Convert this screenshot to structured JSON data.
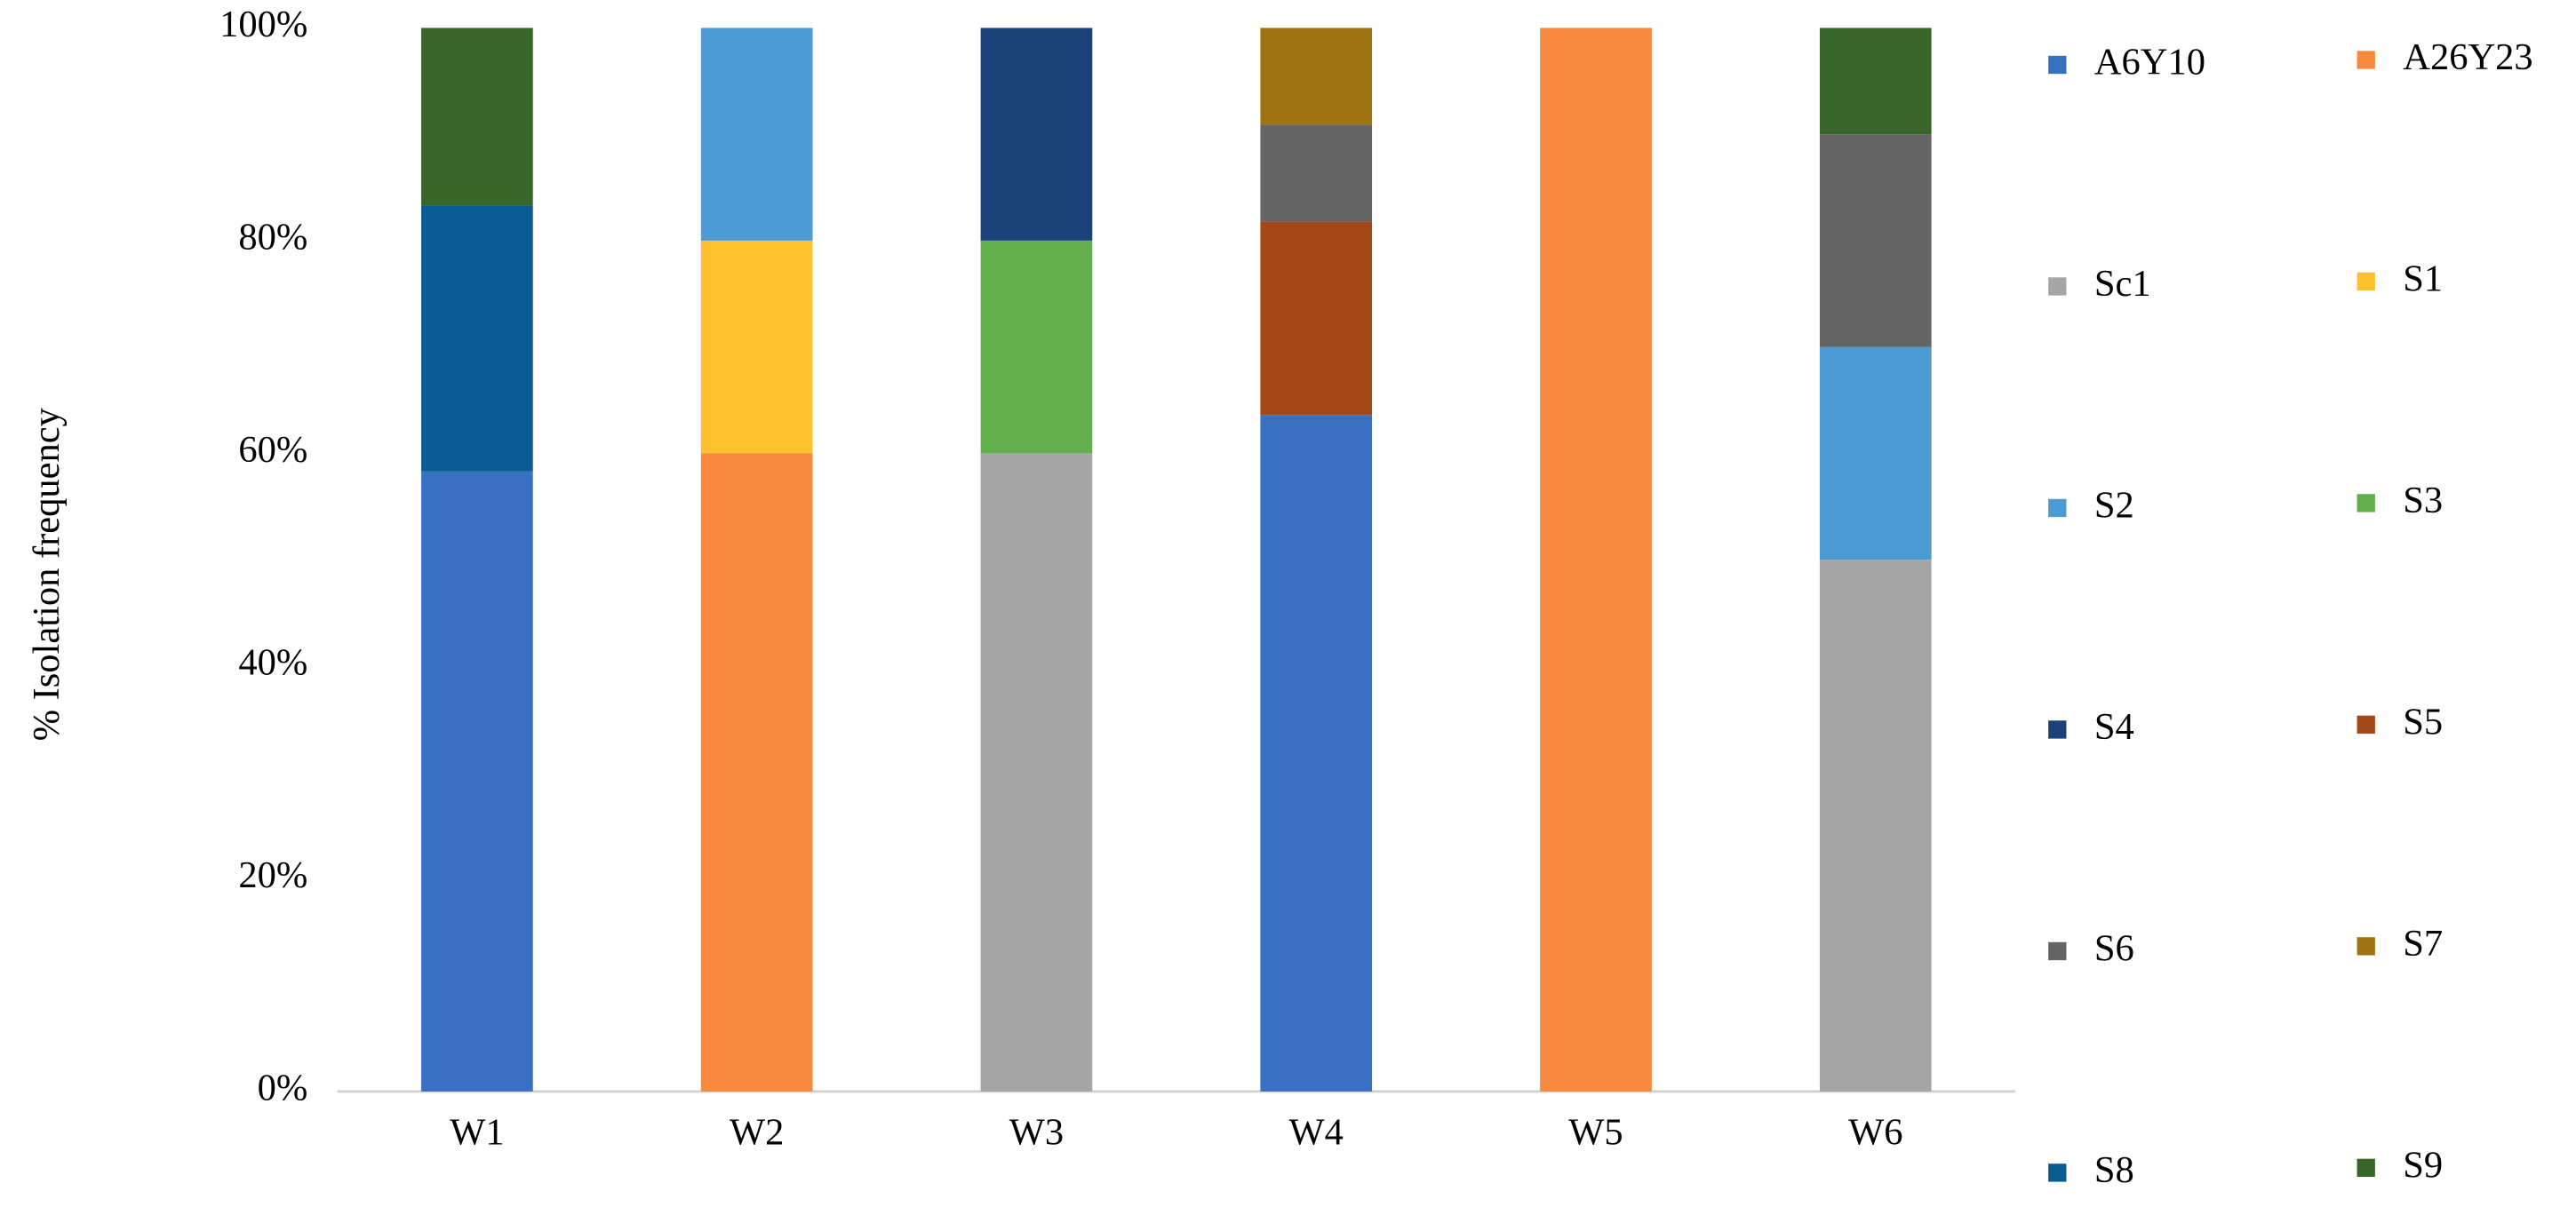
{
  "chart_data": {
    "type": "stacked-bar",
    "y_label": "% Isolation frequency",
    "categories": [
      "W1",
      "W2",
      "W3",
      "W4",
      "W5",
      "W6"
    ],
    "ylim": [
      0,
      100
    ],
    "yticks": [
      {
        "value": 0,
        "label": "0%"
      },
      {
        "value": 20,
        "label": "20%"
      },
      {
        "value": 40,
        "label": "40%"
      },
      {
        "value": 60,
        "label": "60%"
      },
      {
        "value": 80,
        "label": "80%"
      },
      {
        "value": 100,
        "label": "100%"
      }
    ],
    "grid": false,
    "series": [
      {
        "name": "A6Y10",
        "color": "#3a70c2",
        "values": [
          58.3,
          0,
          0,
          63.6,
          0,
          0
        ]
      },
      {
        "name": "A26Y23",
        "color": "#f7883e",
        "values": [
          0,
          60,
          0,
          0,
          100,
          0
        ]
      },
      {
        "name": "Sc1",
        "color": "#a6a6a6",
        "values": [
          0,
          0,
          60,
          0,
          0,
          50
        ]
      },
      {
        "name": "S1",
        "color": "#fdc12e",
        "values": [
          0,
          20,
          0,
          0,
          0,
          0
        ]
      },
      {
        "name": "S2",
        "color": "#4c9bd5",
        "values": [
          0,
          20,
          0,
          0,
          0,
          20
        ]
      },
      {
        "name": "S3",
        "color": "#65ae4e",
        "values": [
          0,
          0,
          20,
          0,
          0,
          0
        ]
      },
      {
        "name": "S4",
        "color": "#1c4279",
        "values": [
          0,
          0,
          20,
          0,
          0,
          0
        ]
      },
      {
        "name": "S5",
        "color": "#a34817",
        "values": [
          0,
          0,
          0,
          18.2,
          0,
          0
        ]
      },
      {
        "name": "S6",
        "color": "#646464",
        "values": [
          0,
          0,
          0,
          9.1,
          0,
          20
        ]
      },
      {
        "name": "S7",
        "color": "#9e7412",
        "values": [
          0,
          0,
          0,
          9.1,
          0,
          0
        ]
      },
      {
        "name": "S8",
        "color": "#0a5b91",
        "values": [
          25,
          0,
          0,
          0,
          0,
          0
        ]
      },
      {
        "name": "S9",
        "color": "#386529",
        "values": [
          16.7,
          0,
          0,
          0,
          0,
          10
        ]
      }
    ]
  }
}
